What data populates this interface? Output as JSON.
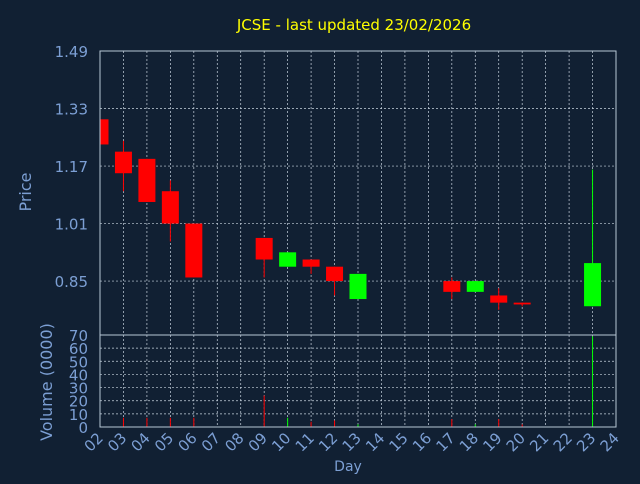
{
  "chart_data": {
    "type": "candlestick",
    "title": "JCSE - last updated 23/02/2026",
    "xlabel": "Day",
    "colors": {
      "background": "#112033",
      "frame": "#b7c7d6",
      "grid": "#c8d3df",
      "axis_text": "#7c9fd4",
      "title": "#ffff00",
      "up": "#00ff00",
      "down": "#ff0000"
    },
    "x_ticks": [
      "02",
      "03",
      "04",
      "05",
      "06",
      "07",
      "08",
      "09",
      "10",
      "11",
      "12",
      "13",
      "14",
      "15",
      "16",
      "17",
      "18",
      "19",
      "20",
      "21",
      "22",
      "23",
      "24"
    ],
    "price_panel": {
      "ylabel": "Price",
      "ylim": [
        0.7,
        1.49
      ],
      "y_ticks": [
        "0.85",
        "1.01",
        "1.17",
        "1.33",
        "1.49"
      ],
      "candles": [
        {
          "day": "02",
          "open": 1.3,
          "close": 1.23,
          "high": 1.3,
          "low": 1.23
        },
        {
          "day": "03",
          "open": 1.21,
          "close": 1.15,
          "high": 1.24,
          "low": 1.1
        },
        {
          "day": "04",
          "open": 1.19,
          "close": 1.07,
          "high": 1.19,
          "low": 1.07
        },
        {
          "day": "05",
          "open": 1.1,
          "close": 1.01,
          "high": 1.13,
          "low": 0.96
        },
        {
          "day": "06",
          "open": 1.01,
          "close": 0.86,
          "high": 1.01,
          "low": 0.86
        },
        {
          "day": "09",
          "open": 0.97,
          "close": 0.91,
          "high": 0.97,
          "low": 0.86
        },
        {
          "day": "10",
          "open": 0.89,
          "close": 0.93,
          "high": 0.93,
          "low": 0.89
        },
        {
          "day": "11",
          "open": 0.91,
          "close": 0.89,
          "high": 0.91,
          "low": 0.87
        },
        {
          "day": "12",
          "open": 0.89,
          "close": 0.85,
          "high": 0.89,
          "low": 0.81
        },
        {
          "day": "13",
          "open": 0.8,
          "close": 0.87,
          "high": 0.87,
          "low": 0.8
        },
        {
          "day": "17",
          "open": 0.85,
          "close": 0.82,
          "high": 0.86,
          "low": 0.8
        },
        {
          "day": "18",
          "open": 0.82,
          "close": 0.85,
          "high": 0.85,
          "low": 0.82
        },
        {
          "day": "19",
          "open": 0.81,
          "close": 0.79,
          "high": 0.83,
          "low": 0.77
        },
        {
          "day": "20",
          "open": 0.79,
          "close": 0.785,
          "high": 0.79,
          "low": 0.78
        },
        {
          "day": "23",
          "open": 0.78,
          "close": 0.9,
          "high": 1.16,
          "low": 0.78
        }
      ]
    },
    "volume_panel": {
      "ylabel": "Volume (0000)",
      "ylim": [
        0,
        70
      ],
      "y_ticks": [
        "0",
        "10",
        "20",
        "30",
        "40",
        "50",
        "60",
        "70"
      ],
      "bars": [
        {
          "day": "02",
          "value": 0.5,
          "direction": "down"
        },
        {
          "day": "03",
          "value": 7,
          "direction": "down"
        },
        {
          "day": "04",
          "value": 7,
          "direction": "down"
        },
        {
          "day": "05",
          "value": 7,
          "direction": "down"
        },
        {
          "day": "06",
          "value": 7,
          "direction": "down"
        },
        {
          "day": "09",
          "value": 24,
          "direction": "down"
        },
        {
          "day": "10",
          "value": 7,
          "direction": "up"
        },
        {
          "day": "11",
          "value": 4,
          "direction": "down"
        },
        {
          "day": "12",
          "value": 5,
          "direction": "down"
        },
        {
          "day": "13",
          "value": 2,
          "direction": "up"
        },
        {
          "day": "17",
          "value": 6,
          "direction": "down"
        },
        {
          "day": "18",
          "value": 2,
          "direction": "up"
        },
        {
          "day": "19",
          "value": 6,
          "direction": "down"
        },
        {
          "day": "20",
          "value": 2,
          "direction": "down"
        },
        {
          "day": "23",
          "value": 69,
          "direction": "up"
        }
      ]
    }
  }
}
